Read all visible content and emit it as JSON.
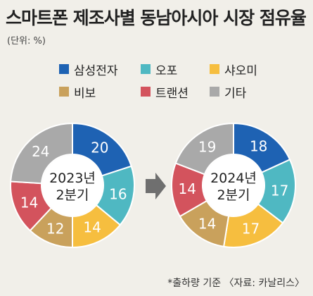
{
  "title": "스마트폰 제조사별 동남아시아 시장 점유율",
  "unit": "(단위: %)",
  "legend": [
    {
      "label": "삼성전자",
      "color": "#1e62b3"
    },
    {
      "label": "오포",
      "color": "#4fb8c2"
    },
    {
      "label": "샤오미",
      "color": "#f6be3f"
    },
    {
      "label": "비보",
      "color": "#c9a15c"
    },
    {
      "label": "트랜션",
      "color": "#d3535d"
    },
    {
      "label": "기타",
      "color": "#a9a9a9"
    }
  ],
  "chart_data": [
    {
      "type": "pie",
      "center_label": [
        "2023년",
        "2분기"
      ],
      "categories": [
        "삼성전자",
        "오포",
        "샤오미",
        "비보",
        "트랜션",
        "기타"
      ],
      "values": [
        20,
        16,
        14,
        12,
        14,
        24
      ]
    },
    {
      "type": "pie",
      "center_label": [
        "2024년",
        "2분기"
      ],
      "categories": [
        "삼성전자",
        "오포",
        "샤오미",
        "비보",
        "트랜션",
        "기타"
      ],
      "values": [
        18,
        17,
        17,
        14,
        14,
        19
      ]
    }
  ],
  "footer": "*출하량 기준  〈자료: 카날리스〉"
}
